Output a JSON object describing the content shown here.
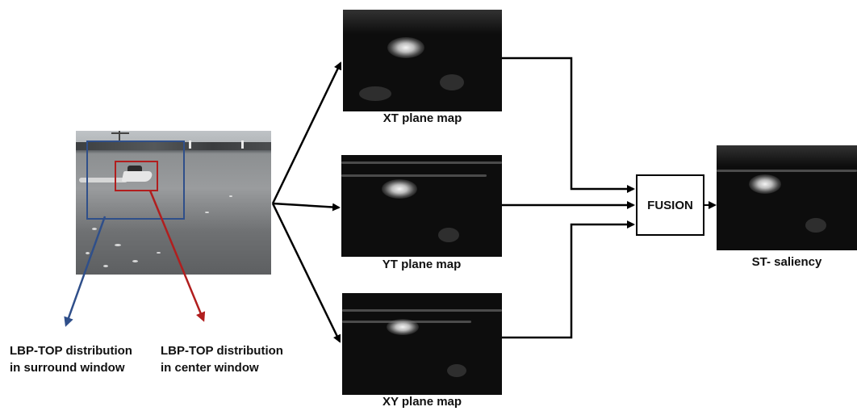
{
  "maps": {
    "xt": {
      "label": "XT plane map"
    },
    "yt": {
      "label": "YT plane map"
    },
    "xy": {
      "label": "XY plane map"
    }
  },
  "fusion": {
    "label": "FUSION"
  },
  "output": {
    "label": "ST- saliency"
  },
  "annotations": {
    "surround": {
      "line1": "LBP-TOP distribution",
      "line2": "in surround window"
    },
    "center": {
      "line1": "LBP-TOP distribution",
      "line2": "in center window"
    }
  },
  "colors": {
    "surround_window": "#2f4f8a",
    "center_window": "#b11e1e",
    "connector": "#000000"
  }
}
